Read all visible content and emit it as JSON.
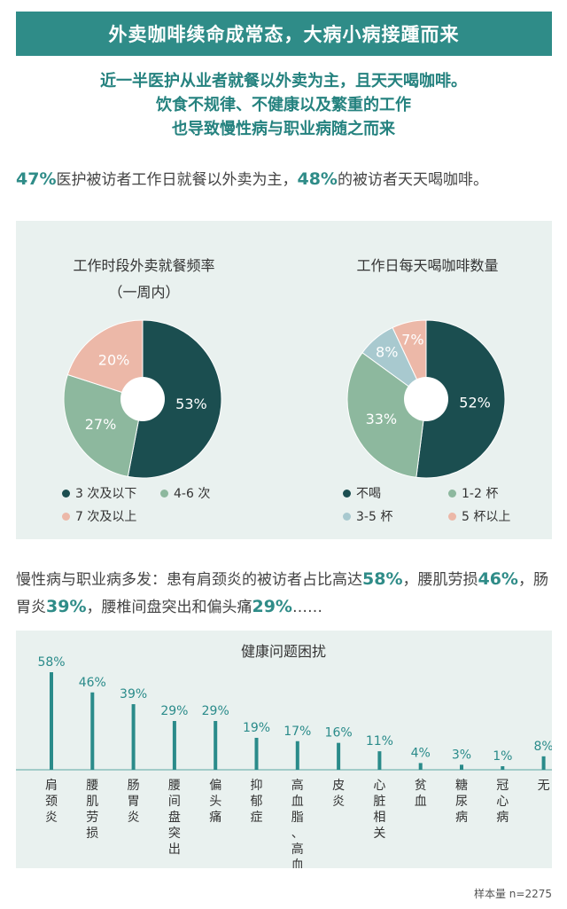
{
  "header": {
    "banner": "外卖咖啡续命成常态，大病小病接踵而来",
    "subtitle_lines": [
      "近一半医护从业者就餐以外卖为主，且天天喝咖啡。",
      "饮食不规律、不健康以及繁重的工作",
      "也导致慢性病与职业病随之而来"
    ]
  },
  "stat1": {
    "pct1": "47%",
    "text1": "医护被访者工作日就餐以外卖为主，",
    "pct2": "48%",
    "text2": "的被访者天天喝咖啡。"
  },
  "colors": {
    "dark": "#1b4e50",
    "mid": "#8db89e",
    "light_blue": "#a8c9cf",
    "pink": "#ecb8a8",
    "bar": "#2a8b8a",
    "accent": "#2f8c88"
  },
  "stat2": {
    "t1": "慢性病与职业病多发：患有肩颈炎的被访者占比高达",
    "p1": "58%",
    "t2": "，腰肌劳损",
    "p2": "46%",
    "t3": "，肠胃炎",
    "p3": "39%",
    "t4": "，腰椎间盘突出和偏头痛",
    "p4": "29%",
    "t5": "……"
  },
  "footnote": "样本量 n=2275",
  "chart_data": [
    {
      "type": "pie",
      "title": "工作时段外卖就餐频率",
      "subtitle": "（一周内）",
      "slices": [
        {
          "label": "3 次及以下",
          "value": 53,
          "color": "#1b4e50"
        },
        {
          "label": "4-6 次",
          "value": 27,
          "color": "#8db89e"
        },
        {
          "label": "7 次及以上",
          "value": 20,
          "color": "#ecb8a8"
        }
      ],
      "value_labels": [
        "53%",
        "27%",
        "20%"
      ]
    },
    {
      "type": "pie",
      "title": "工作日每天喝咖啡数量",
      "slices": [
        {
          "label": "不喝",
          "value": 52,
          "color": "#1b4e50"
        },
        {
          "label": "1-2 杯",
          "value": 33,
          "color": "#8db89e"
        },
        {
          "label": "3-5 杯",
          "value": 8,
          "color": "#a8c9cf"
        },
        {
          "label": "5 杯以上",
          "value": 7,
          "color": "#ecb8a8"
        }
      ],
      "value_labels": [
        "52%",
        "33%",
        "8%",
        "7%"
      ]
    },
    {
      "type": "bar",
      "title": "健康问题困扰",
      "categories": [
        "肩颈炎",
        "腰肌劳损",
        "肠胃炎",
        "腰间盘突出",
        "偏头痛",
        "抑郁症",
        "高血脂、高血压",
        "皮炎",
        "心脏相关",
        "贫血",
        "糖尿病",
        "冠心病",
        "无"
      ],
      "values": [
        58,
        46,
        39,
        29,
        29,
        19,
        17,
        16,
        11,
        4,
        3,
        1,
        8
      ],
      "value_labels": [
        "58%",
        "46%",
        "39%",
        "29%",
        "29%",
        "19%",
        "17%",
        "16%",
        "11%",
        "4%",
        "3%",
        "1%",
        "8%"
      ]
    }
  ]
}
